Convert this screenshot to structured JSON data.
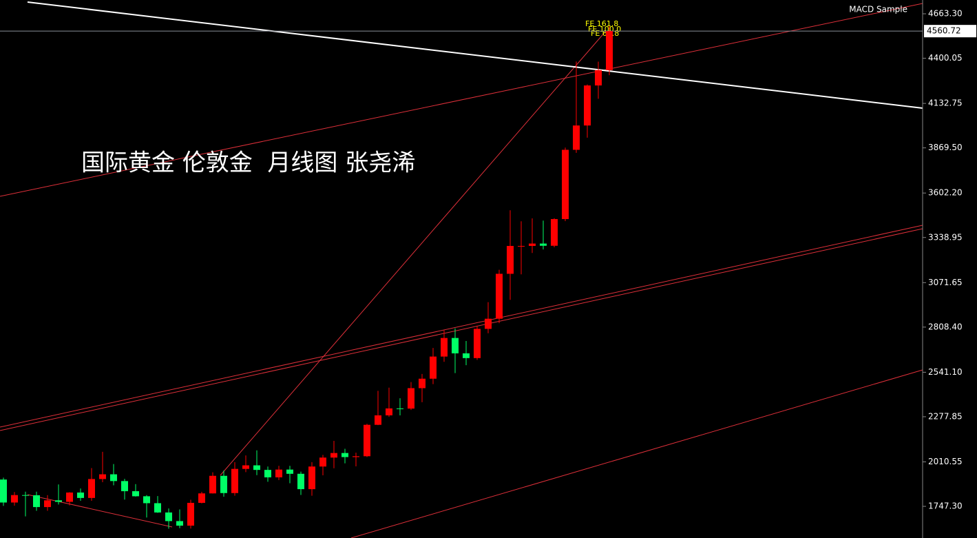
{
  "chart_data": {
    "type": "candlestick",
    "title": "国际黄金 伦敦金  月线图 张尧浠",
    "indicator": "MACD Sample",
    "ylim": [
      1559.9,
      4744.9
    ],
    "yticks": [
      {
        "value": 4663.3,
        "label": "4663.30"
      },
      4400.05,
      4132.75,
      {
        "value": 3869.5,
        "label": "3869.50"
      },
      {
        "value": 3602.2,
        "label": "3602.20"
      },
      3338.95,
      3071.65,
      {
        "value": 2808.4,
        "label": "2808.40"
      },
      {
        "value": 2541.1,
        "label": "2541.10"
      },
      2277.85,
      2010.55,
      {
        "value": 1747.3,
        "label": "1747.30"
      }
    ],
    "up_color": "#ff0000",
    "down_color": "#00ff66",
    "last_price": 4560.72,
    "annotations": [
      "FE 161.8",
      "FE 100.0",
      "FE 61.8"
    ],
    "open": [
      1906,
      1770,
      1814,
      1813,
      1743,
      1783,
      1774,
      1829,
      1797,
      1909,
      1937,
      1897,
      1837,
      1807,
      1766,
      1711,
      1660,
      1633,
      1768,
      1824,
      1928,
      1826,
      1969,
      1990,
      1963,
      1919,
      1965,
      1940,
      1849,
      1983,
      2036,
      2063,
      2039,
      2044,
      2230,
      2286,
      2327,
      2326,
      2447,
      2503,
      2634,
      2744,
      2653,
      2625,
      2798,
      2858,
      3124,
      3289,
      3289,
      3303,
      3290,
      3448,
      3858,
      4002,
      4239,
      4330
    ],
    "high": [
      1917,
      1832,
      1834,
      1834,
      1814,
      1877,
      1831,
      1853,
      1974,
      2070,
      1998,
      1910,
      1879,
      1814,
      1808,
      1735,
      1729,
      1786,
      1833,
      1949,
      1959,
      2009,
      2049,
      2079,
      1983,
      1987,
      1987,
      1953,
      2009,
      2052,
      2135,
      2088,
      2065,
      2236,
      2431,
      2450,
      2387,
      2483,
      2531,
      2685,
      2790,
      2801,
      2726,
      2817,
      2956,
      3148,
      3500,
      3435,
      3452,
      3439,
      3453,
      3871,
      4381,
      4245,
      4380,
      4590
    ],
    "low": [
      1750,
      1751,
      1688,
      1721,
      1721,
      1758,
      1753,
      1780,
      1780,
      1890,
      1872,
      1787,
      1805,
      1681,
      1709,
      1615,
      1618,
      1616,
      1765,
      1823,
      1804,
      1810,
      1950,
      1932,
      1893,
      1903,
      1884,
      1815,
      1810,
      1931,
      1973,
      2002,
      1984,
      2039,
      2228,
      2277,
      2286,
      2318,
      2364,
      2471,
      2603,
      2536,
      2583,
      2614,
      2772,
      2832,
      2970,
      3121,
      3247,
      3268,
      3281,
      3436,
      3840,
      3930,
      4160,
      4300
    ],
    "close": [
      1770,
      1814,
      1813,
      1743,
      1783,
      1774,
      1829,
      1797,
      1909,
      1937,
      1897,
      1837,
      1807,
      1766,
      1711,
      1660,
      1633,
      1768,
      1824,
      1928,
      1826,
      1969,
      1990,
      1963,
      1919,
      1965,
      1940,
      1849,
      1983,
      2036,
      2063,
      2039,
      2044,
      2230,
      2286,
      2327,
      2326,
      2447,
      2503,
      2634,
      2744,
      2653,
      2625,
      2798,
      2858,
      3124,
      3289,
      3289,
      3303,
      3290,
      3448,
      3858,
      4002,
      4239,
      4330,
      4560.72
    ]
  }
}
